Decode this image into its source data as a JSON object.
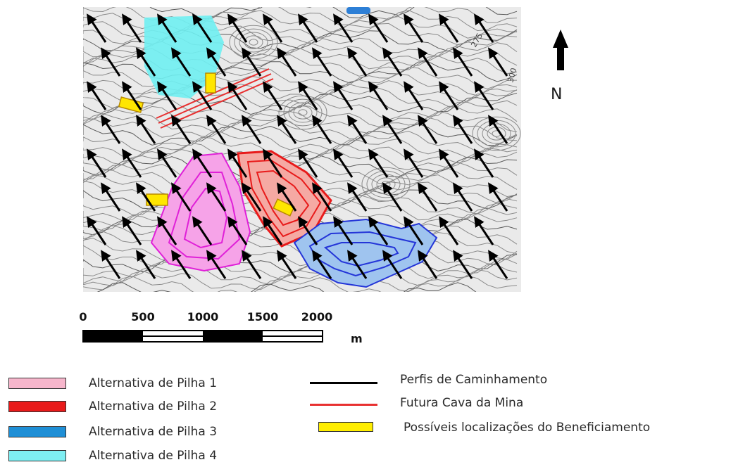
{
  "north": {
    "label": "N"
  },
  "scale_bar": {
    "ticks": [
      "0",
      "500",
      "1000",
      "1500",
      "2000"
    ],
    "unit": "m"
  },
  "contour_labels": [
    "275",
    "300"
  ],
  "legend": {
    "areas": [
      {
        "label": "Alternativa de Pilha 1",
        "color": "#f7b6cc"
      },
      {
        "label": "Alternativa de Pilha 2",
        "color": "#e81a1a"
      },
      {
        "label": "Alternativa de Pilha 3",
        "color": "#1f8fd6"
      },
      {
        "label": "Alternativa de Pilha 4",
        "color": "#7eeef2"
      }
    ],
    "lines": [
      {
        "label": "Perfis de Caminhamento",
        "color": "#000000"
      },
      {
        "label": "Futura Cava da Mina",
        "color": "#e83030"
      }
    ],
    "boxes": [
      {
        "label": "Possíveis localizações do Beneficiamento",
        "color": "#ffee00"
      }
    ]
  }
}
